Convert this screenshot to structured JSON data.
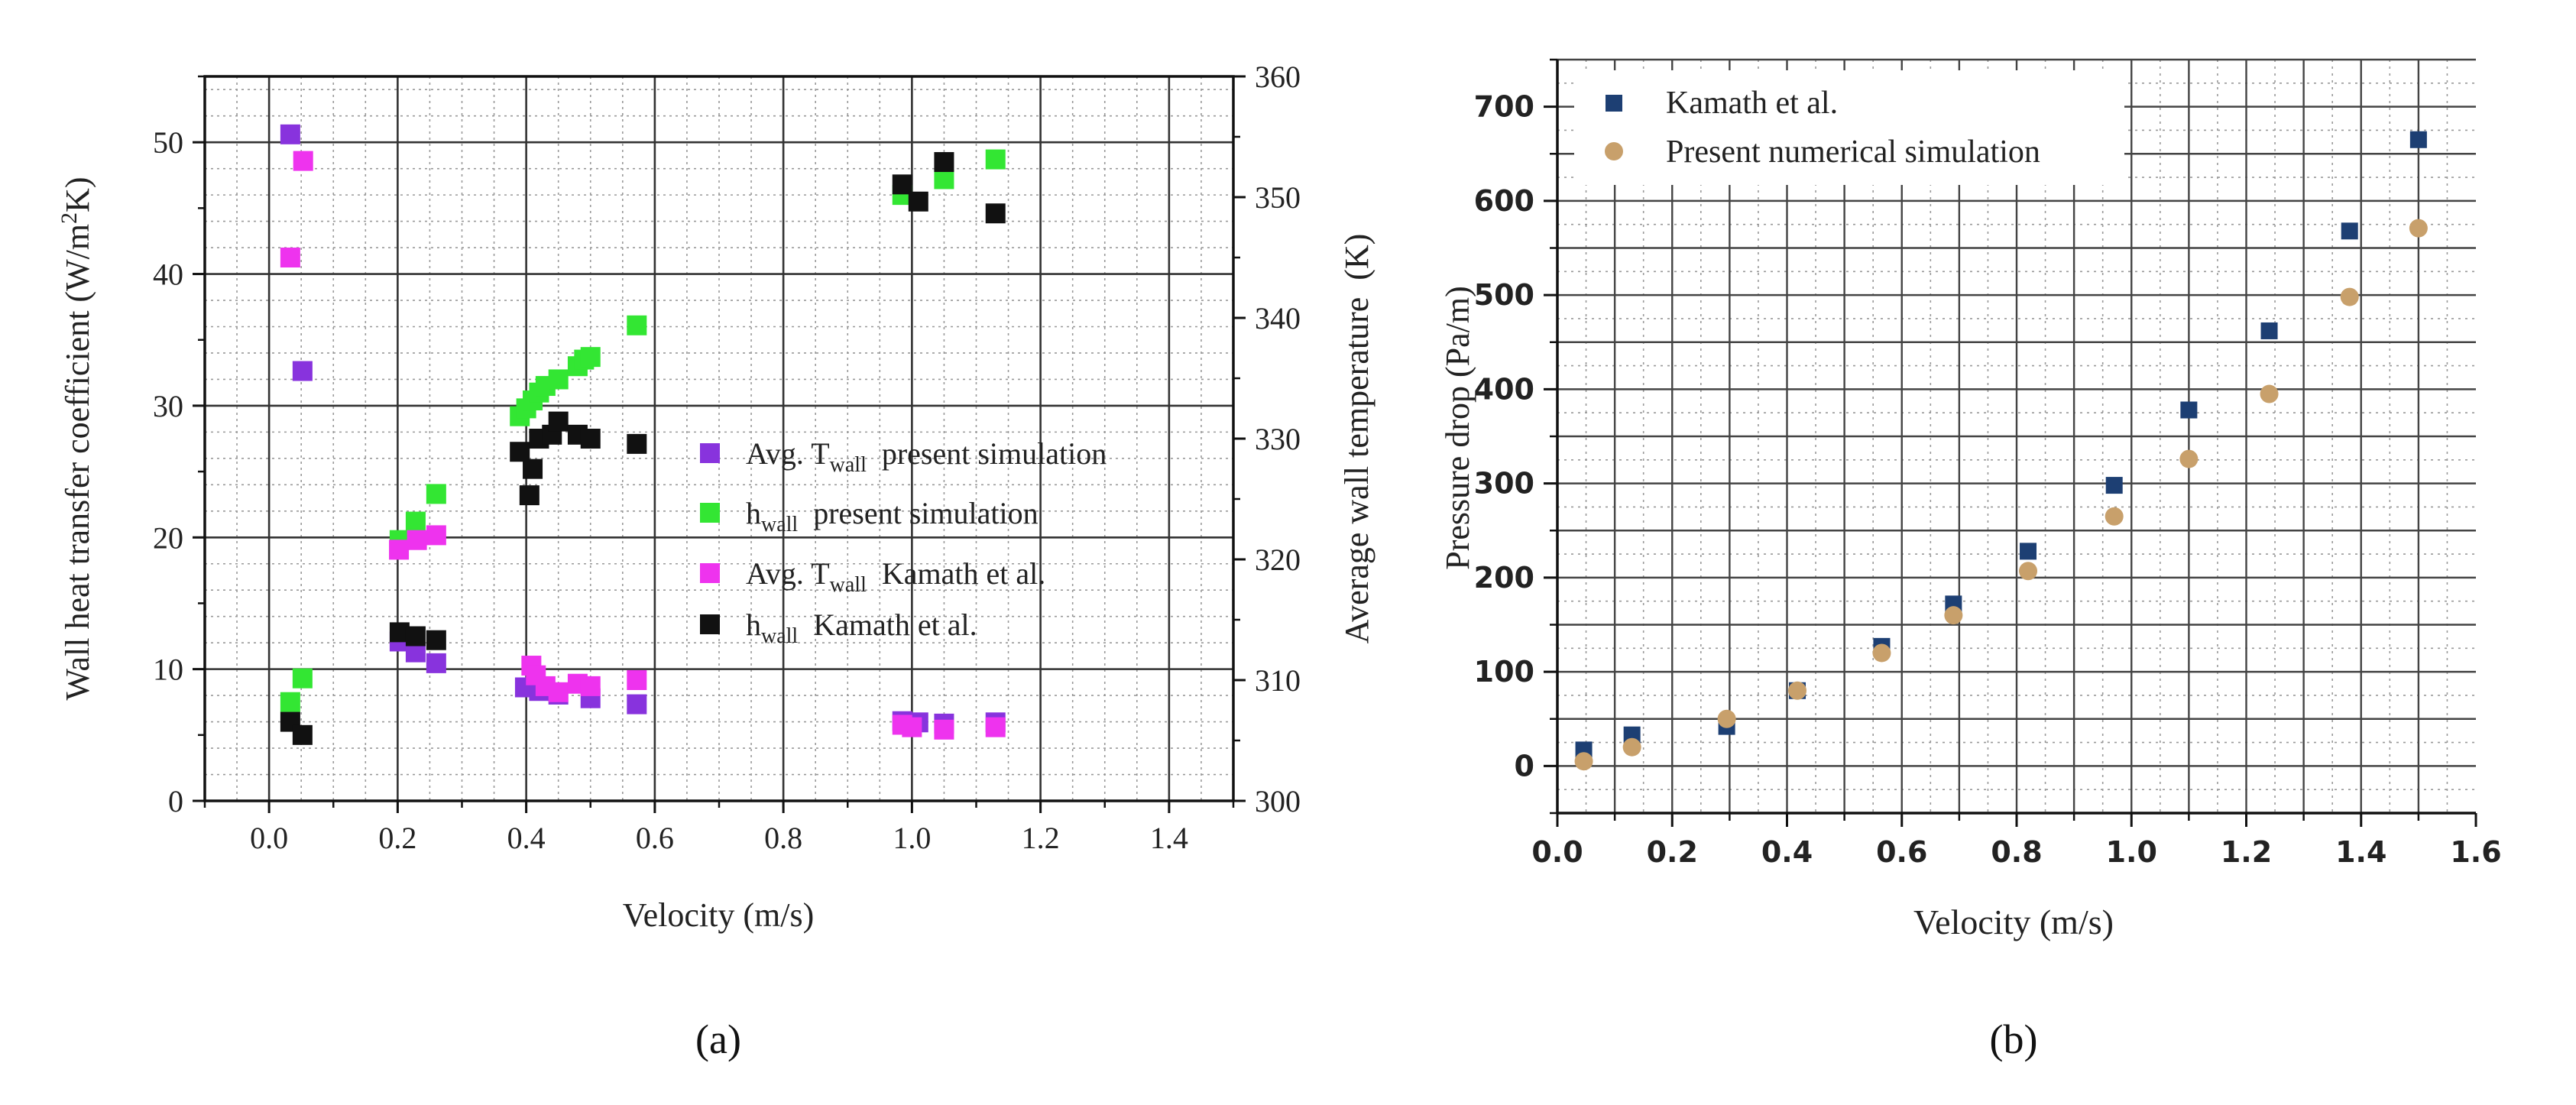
{
  "chart_data": [
    {
      "type": "scatter",
      "panel_label": "(a)",
      "xlabel": "Velocity (m/s)",
      "ylabel": "Wall heat transfer coefficient (W/m²K)",
      "ylabel_parts": [
        "Wall heat transfer coefficient (W/m",
        "2",
        "K)"
      ],
      "y2label": "Average wall temperature  (K)",
      "xlim": [
        -0.1,
        1.5
      ],
      "ylim": [
        0,
        55
      ],
      "y2lim": [
        300,
        360
      ],
      "xticks": [
        "0.0",
        "0.2",
        "0.4",
        "0.6",
        "0.8",
        "1.0",
        "1.2",
        "1.4"
      ],
      "xtick_values": [
        0.0,
        0.2,
        0.4,
        0.6,
        0.8,
        1.0,
        1.2,
        1.4
      ],
      "yticks": [
        "0",
        "10",
        "20",
        "30",
        "40",
        "50"
      ],
      "ytick_values": [
        0,
        10,
        20,
        30,
        40,
        50
      ],
      "y2ticks": [
        "300",
        "310",
        "320",
        "330",
        "340",
        "350",
        "360"
      ],
      "y2tick_values": [
        300,
        310,
        320,
        330,
        340,
        350,
        360
      ],
      "grid": true,
      "legend_position": "center-right",
      "series": [
        {
          "name": "Avg. T_wall present simulation",
          "legend": {
            "pre": "Avg. T",
            "sub": "wall",
            "post": "  present simulation"
          },
          "axis": "right",
          "color": "#8833dd",
          "marker": "square",
          "x": [
            0.033,
            0.052,
            0.203,
            0.228,
            0.26,
            0.398,
            0.42,
            0.45,
            0.5,
            0.572,
            0.985,
            1.01,
            1.05,
            1.13
          ],
          "y": [
            355.2,
            335.6,
            313.2,
            312.3,
            311.4,
            309.4,
            309.1,
            308.8,
            308.5,
            308.0,
            306.6,
            306.5,
            306.4,
            306.5
          ]
        },
        {
          "name": "h_wall present simulation",
          "legend": {
            "pre": "h",
            "sub": "wall",
            "post": "  present simulation"
          },
          "axis": "left",
          "color": "#33e633",
          "marker": "square",
          "x": [
            0.033,
            0.052,
            0.203,
            0.228,
            0.26,
            0.39,
            0.4,
            0.41,
            0.42,
            0.43,
            0.45,
            0.48,
            0.49,
            0.5,
            0.572,
            0.985,
            1.05,
            1.13
          ],
          "y": [
            7.5,
            9.3,
            19.8,
            21.2,
            23.3,
            29.2,
            29.8,
            30.4,
            31.0,
            31.5,
            32.0,
            33.0,
            33.5,
            33.7,
            36.1,
            46.0,
            47.2,
            48.7
          ]
        },
        {
          "name": "Avg. T_wall Kamath et al.",
          "legend": {
            "pre": "Avg. T",
            "sub": "wall",
            "post": "  Kamath et al."
          },
          "axis": "right",
          "color": "#ee33ee",
          "marker": "square",
          "x": [
            0.033,
            0.053,
            0.202,
            0.23,
            0.26,
            0.408,
            0.415,
            0.43,
            0.45,
            0.48,
            0.5,
            0.572,
            0.985,
            1.0,
            1.05,
            1.13
          ],
          "y": [
            345.0,
            353.0,
            320.8,
            321.6,
            322.0,
            311.2,
            310.4,
            309.5,
            309.0,
            309.7,
            309.5,
            310.0,
            306.3,
            306.1,
            305.9,
            306.1
          ]
        },
        {
          "name": "h_wall Kamath et al.",
          "legend": {
            "pre": "h",
            "sub": "wall",
            "post": "  Kamath et al."
          },
          "axis": "left",
          "color": "#111111",
          "marker": "square",
          "x": [
            0.033,
            0.052,
            0.203,
            0.228,
            0.26,
            0.39,
            0.405,
            0.41,
            0.42,
            0.44,
            0.45,
            0.48,
            0.5,
            0.572,
            0.985,
            1.01,
            1.05,
            1.13
          ],
          "y": [
            6.0,
            5.0,
            12.8,
            12.5,
            12.2,
            26.5,
            23.2,
            25.2,
            27.5,
            27.8,
            28.8,
            27.8,
            27.5,
            27.1,
            46.8,
            45.5,
            48.5,
            44.6
          ]
        }
      ]
    },
    {
      "type": "scatter",
      "panel_label": "(b)",
      "xlabel": "Velocity (m/s)",
      "ylabel": "Pressure drop (Pa/m)",
      "xlim": [
        0,
        1.6
      ],
      "ylim": [
        -50,
        750
      ],
      "xticks": [
        "0.0",
        "0.2",
        "0.4",
        "0.6",
        "0.8",
        "1.0",
        "1.2",
        "1.4",
        "1.6"
      ],
      "xtick_values": [
        0.0,
        0.2,
        0.4,
        0.6,
        0.8,
        1.0,
        1.2,
        1.4,
        1.6
      ],
      "yticks": [
        "0",
        "100",
        "200",
        "300",
        "400",
        "500",
        "600",
        "700"
      ],
      "ytick_values": [
        0,
        100,
        200,
        300,
        400,
        500,
        600,
        700
      ],
      "grid": true,
      "legend_position": "top-left",
      "series": [
        {
          "name": "Kamath et al.",
          "color": "#1d3f73",
          "marker": "square",
          "x": [
            0.046,
            0.13,
            0.295,
            0.418,
            0.565,
            0.69,
            0.82,
            0.97,
            1.1,
            1.24,
            1.38,
            1.5
          ],
          "y": [
            17,
            33,
            42,
            80,
            127,
            172,
            228,
            298,
            378,
            462,
            568,
            665
          ]
        },
        {
          "name": "Present numerical simulation",
          "color": "#c8a06b",
          "marker": "circle",
          "x": [
            0.046,
            0.13,
            0.295,
            0.418,
            0.565,
            0.69,
            0.82,
            0.97,
            1.1,
            1.24,
            1.38,
            1.5
          ],
          "y": [
            5,
            20,
            50,
            80,
            120,
            160,
            207,
            265,
            326,
            395,
            498,
            571
          ]
        }
      ]
    }
  ]
}
